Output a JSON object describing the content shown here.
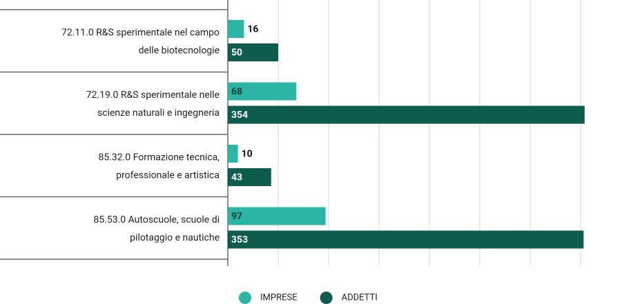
{
  "chart_data": {
    "type": "bar",
    "orientation": "horizontal",
    "categories": [
      [
        "72.11.0 R&S sperimentale nel campo",
        "delle biotecnologie"
      ],
      [
        "72.19.0 R&S sperimentale nelle",
        "scienze naturali e ingegneria"
      ],
      [
        "85.32.0 Formazione tecnica,",
        "professionale e artistica"
      ],
      [
        "85.53.0 Autoscuole, scuole di",
        "pilotaggio e nautiche"
      ]
    ],
    "series": [
      {
        "name": "IMPRESE",
        "color": "#2bb5a5",
        "values": [
          16,
          68,
          10,
          97
        ]
      },
      {
        "name": "ADDETTI",
        "color": "#0d5c4e",
        "values": [
          50,
          354,
          43,
          353
        ]
      }
    ],
    "xlim": [
      0,
      350
    ],
    "xticks": [
      0,
      50,
      100,
      150,
      200,
      250,
      300,
      350
    ],
    "grid": true,
    "legend": "bottom"
  }
}
